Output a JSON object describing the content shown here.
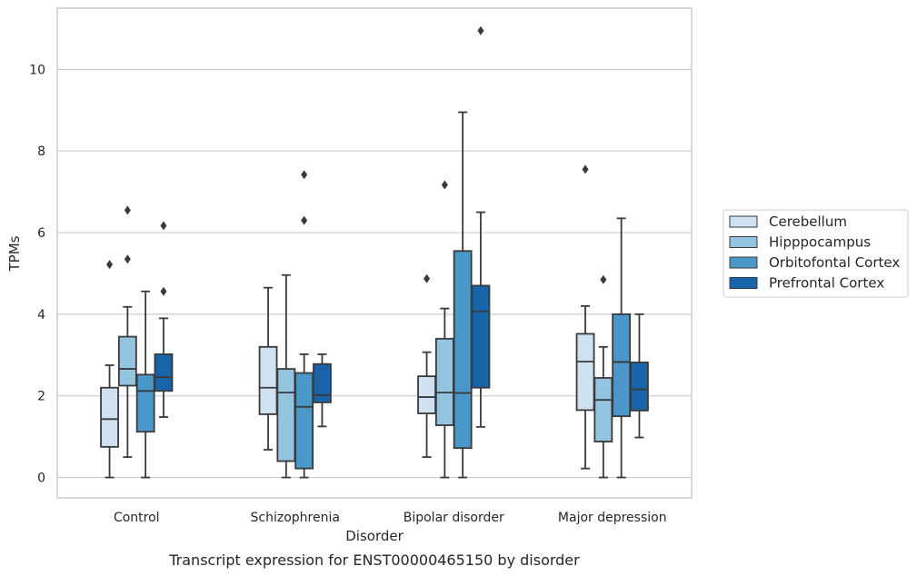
{
  "chart_data": {
    "type": "box",
    "caption": "Transcript expression for ENST00000465150 by disorder",
    "xlabel": "Disorder",
    "ylabel": "TPMs",
    "ylim": [
      -0.5,
      11.5
    ],
    "yticks": [
      0,
      2,
      4,
      6,
      8,
      10
    ],
    "grid": "horizontal",
    "legend_position": "right",
    "categories": [
      "Control",
      "Schizophrenia",
      "Bipolar disorder",
      "Major depression"
    ],
    "series": [
      {
        "name": "Cerebellum",
        "color": "#d0e1f2",
        "boxes": [
          {
            "whislo": 0.0,
            "q1": 0.75,
            "med": 1.43,
            "q3": 2.2,
            "whishi": 2.75,
            "fliers": [
              5.22
            ]
          },
          {
            "whislo": 0.68,
            "q1": 1.55,
            "med": 2.2,
            "q3": 3.2,
            "whishi": 4.65,
            "fliers": []
          },
          {
            "whislo": 0.5,
            "q1": 1.57,
            "med": 1.97,
            "q3": 2.48,
            "whishi": 3.07,
            "fliers": [
              4.87
            ]
          },
          {
            "whislo": 0.22,
            "q1": 1.65,
            "med": 2.84,
            "q3": 3.52,
            "whishi": 4.2,
            "fliers": [
              7.55
            ]
          }
        ]
      },
      {
        "name": "Hipppocampus",
        "color": "#94c4df",
        "boxes": [
          {
            "whislo": 0.5,
            "q1": 2.25,
            "med": 2.66,
            "q3": 3.45,
            "whishi": 4.18,
            "fliers": [
              5.35,
              6.55
            ]
          },
          {
            "whislo": 0.0,
            "q1": 0.4,
            "med": 2.08,
            "q3": 2.66,
            "whishi": 4.96,
            "fliers": []
          },
          {
            "whislo": 0.0,
            "q1": 1.28,
            "med": 2.08,
            "q3": 3.4,
            "whishi": 4.14,
            "fliers": [
              7.17
            ]
          },
          {
            "whislo": 0.0,
            "q1": 0.88,
            "med": 1.9,
            "q3": 2.44,
            "whishi": 3.2,
            "fliers": [
              4.85
            ]
          }
        ]
      },
      {
        "name": "Orbitofontal Cortex",
        "color": "#4a98c9",
        "boxes": [
          {
            "whislo": 0.0,
            "q1": 1.12,
            "med": 2.12,
            "q3": 2.52,
            "whishi": 4.56,
            "fliers": []
          },
          {
            "whislo": 0.0,
            "q1": 0.22,
            "med": 1.73,
            "q3": 2.56,
            "whishi": 3.02,
            "fliers": [
              6.3,
              7.42
            ]
          },
          {
            "whislo": 0.0,
            "q1": 0.72,
            "med": 2.07,
            "q3": 5.55,
            "whishi": 8.95,
            "fliers": []
          },
          {
            "whislo": 0.0,
            "q1": 1.5,
            "med": 2.83,
            "q3": 4.0,
            "whishi": 6.35,
            "fliers": []
          }
        ]
      },
      {
        "name": "Prefrontal Cortex",
        "color": "#1764ab",
        "boxes": [
          {
            "whislo": 1.48,
            "q1": 2.12,
            "med": 2.46,
            "q3": 3.02,
            "whishi": 3.9,
            "fliers": [
              4.56,
              6.17
            ]
          },
          {
            "whislo": 1.25,
            "q1": 1.84,
            "med": 2.02,
            "q3": 2.78,
            "whishi": 3.02,
            "fliers": []
          },
          {
            "whislo": 1.24,
            "q1": 2.2,
            "med": 4.07,
            "q3": 4.7,
            "whishi": 6.5,
            "fliers": [
              10.95
            ]
          },
          {
            "whislo": 0.98,
            "q1": 1.64,
            "med": 2.16,
            "q3": 2.82,
            "whishi": 4.0,
            "fliers": []
          }
        ]
      }
    ]
  }
}
